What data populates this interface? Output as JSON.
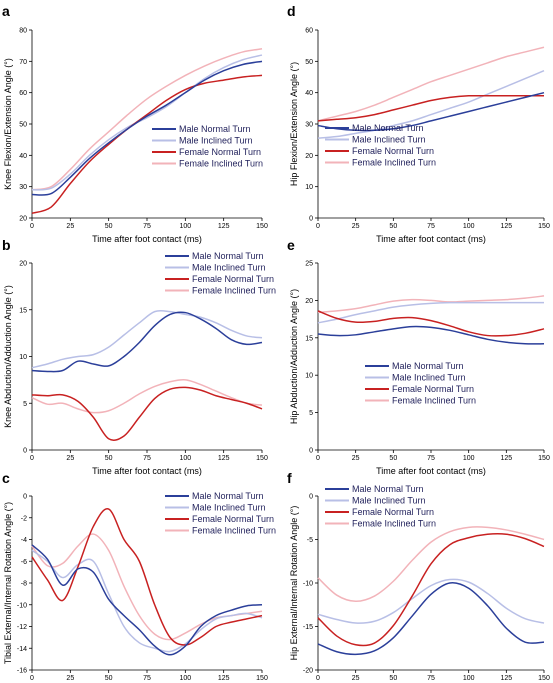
{
  "series_colors": {
    "Male Normal Turn": "#2b3f9a",
    "Male Inclined Turn": "#b8bfe6",
    "Female Normal Turn": "#c82121",
    "Female Inclined Turn": "#f2b3b9"
  },
  "chart_data": [
    {
      "id": "a",
      "type": "line",
      "panel_label": "a",
      "xlabel": "Time after foot contact (ms)",
      "ylabel": "Knee Flexion/Extension Angle (°)",
      "xlim": [
        0,
        150
      ],
      "ylim": [
        20,
        80
      ],
      "xticks": [
        0,
        25,
        50,
        75,
        100,
        125,
        150
      ],
      "yticks": [
        20,
        30,
        40,
        50,
        60,
        70,
        80
      ],
      "legend": "lower-right",
      "x": [
        0,
        12.5,
        25,
        37.5,
        50,
        62.5,
        75,
        87.5,
        100,
        112.5,
        125,
        137.5,
        150
      ],
      "series": [
        {
          "name": "Male Normal Turn",
          "values": [
            27.5,
            27.8,
            33,
            39,
            44,
            48.5,
            52.5,
            56,
            60,
            64,
            67,
            69,
            70
          ]
        },
        {
          "name": "Male Inclined Turn",
          "values": [
            29,
            29.5,
            34,
            40,
            45,
            49,
            52,
            55.5,
            60,
            64.5,
            68,
            70.5,
            72
          ]
        },
        {
          "name": "Female Normal Turn",
          "values": [
            21.5,
            23.5,
            31,
            38,
            43.5,
            48.5,
            53,
            57.5,
            61,
            63,
            64,
            65,
            65.5
          ]
        },
        {
          "name": "Female Inclined Turn",
          "values": [
            29,
            30,
            35.5,
            42,
            47.5,
            53,
            58,
            62,
            65.5,
            68.5,
            71,
            73,
            74
          ]
        }
      ]
    },
    {
      "id": "d",
      "type": "line",
      "panel_label": "d",
      "xlabel": "Time after foot contact (ms)",
      "ylabel": "Hip Flexion/Extension Angle (°)",
      "xlim": [
        0,
        150
      ],
      "ylim": [
        0,
        60
      ],
      "xticks": [
        0,
        25,
        50,
        75,
        100,
        125,
        150
      ],
      "yticks": [
        0,
        10,
        20,
        30,
        40,
        50,
        60
      ],
      "legend": "lower-left",
      "x": [
        0,
        12.5,
        25,
        37.5,
        50,
        62.5,
        75,
        87.5,
        100,
        112.5,
        125,
        137.5,
        150
      ],
      "series": [
        {
          "name": "Male Normal Turn",
          "values": [
            29.5,
            28.5,
            28,
            28,
            28.5,
            29.5,
            31,
            32.5,
            34,
            35.5,
            37,
            38.5,
            40
          ]
        },
        {
          "name": "Male Inclined Turn",
          "values": [
            25.5,
            26,
            27,
            28,
            29.5,
            31,
            33,
            35,
            37,
            39.5,
            42,
            44.5,
            47
          ]
        },
        {
          "name": "Female Normal Turn",
          "values": [
            31,
            31.5,
            32,
            33,
            34.5,
            36,
            37.5,
            38.5,
            39,
            39,
            39,
            39,
            39
          ]
        },
        {
          "name": "Female Inclined Turn",
          "values": [
            31,
            32.5,
            34,
            36,
            38.5,
            41,
            43.5,
            45.5,
            47.5,
            49.5,
            51.5,
            53,
            54.5
          ]
        }
      ]
    },
    {
      "id": "b",
      "type": "line",
      "panel_label": "b",
      "xlabel": "Time after foot contact (ms)",
      "ylabel": "Knee Abduction/Adduction Angle (°)",
      "xlim": [
        0,
        150
      ],
      "ylim": [
        0,
        20
      ],
      "xticks": [
        0,
        25,
        50,
        75,
        100,
        125,
        150
      ],
      "yticks": [
        0,
        5,
        10,
        15,
        20
      ],
      "legend": "top-right",
      "x": [
        0,
        10,
        20,
        30,
        40,
        50,
        60,
        70,
        80,
        90,
        100,
        110,
        120,
        130,
        140,
        150
      ],
      "series": [
        {
          "name": "Male Normal Turn",
          "values": [
            8.5,
            8.4,
            8.5,
            9.5,
            9.2,
            9.0,
            10,
            11.5,
            13.3,
            14.5,
            14.7,
            14.0,
            13,
            11.8,
            11.3,
            11.5
          ]
        },
        {
          "name": "Male Inclined Turn",
          "values": [
            8.8,
            9.2,
            9.7,
            10,
            10.2,
            11,
            12.3,
            13.6,
            14.8,
            14.8,
            14.5,
            14.2,
            13.6,
            12.8,
            12.2,
            12
          ]
        },
        {
          "name": "Female Normal Turn",
          "values": [
            5.9,
            5.8,
            5.9,
            5.2,
            3.5,
            1.2,
            1.5,
            3.5,
            5.5,
            6.5,
            6.7,
            6.4,
            5.8,
            5.4,
            5.0,
            4.4
          ]
        },
        {
          "name": "Female Inclined Turn",
          "values": [
            5.6,
            4.9,
            5.0,
            4.4,
            4.0,
            4.2,
            5.0,
            6.0,
            6.8,
            7.3,
            7.5,
            7.0,
            6.3,
            5.6,
            5.0,
            4.8
          ]
        }
      ]
    },
    {
      "id": "e",
      "type": "line",
      "panel_label": "e",
      "xlabel": "Time after foot contact (ms)",
      "ylabel": "Hip Abduction/Adduction Angle (°)",
      "xlim": [
        0,
        150
      ],
      "ylim": [
        0,
        25
      ],
      "xticks": [
        0,
        25,
        50,
        75,
        100,
        125,
        150
      ],
      "yticks": [
        0,
        5,
        10,
        15,
        20,
        25
      ],
      "legend": "lower-right",
      "x": [
        0,
        12.5,
        25,
        37.5,
        50,
        62.5,
        75,
        87.5,
        100,
        112.5,
        125,
        137.5,
        150
      ],
      "series": [
        {
          "name": "Male Normal Turn",
          "values": [
            15.5,
            15.3,
            15.4,
            15.8,
            16.2,
            16.5,
            16.4,
            16.0,
            15.4,
            14.8,
            14.4,
            14.2,
            14.2
          ]
        },
        {
          "name": "Male Inclined Turn",
          "values": [
            17.0,
            17.5,
            18.1,
            18.6,
            19.1,
            19.4,
            19.6,
            19.7,
            19.7,
            19.7,
            19.7,
            19.7,
            19.7
          ]
        },
        {
          "name": "Female Normal Turn",
          "values": [
            18.6,
            17.6,
            17.1,
            17.2,
            17.6,
            17.7,
            17.3,
            16.6,
            15.8,
            15.3,
            15.3,
            15.6,
            16.2
          ]
        },
        {
          "name": "Female Inclined Turn",
          "values": [
            18.4,
            18.6,
            18.9,
            19.4,
            19.9,
            20.1,
            20.0,
            19.8,
            19.9,
            20.0,
            20.1,
            20.3,
            20.6
          ]
        }
      ]
    },
    {
      "id": "c",
      "type": "line",
      "panel_label": "c",
      "xlabel": "Time after foot contact (ms)",
      "ylabel": "Tibial External/Internal Rotation Angle (°)",
      "xlim": [
        0,
        150
      ],
      "ylim": [
        -16,
        0
      ],
      "xticks": [
        0,
        25,
        50,
        75,
        100,
        125,
        150
      ],
      "yticks": [
        0,
        -2,
        -4,
        -6,
        -8,
        -10,
        -12,
        -14,
        -16
      ],
      "legend": "top-right",
      "x": [
        0,
        10,
        20,
        30,
        40,
        50,
        60,
        70,
        80,
        90,
        100,
        110,
        120,
        130,
        140,
        150
      ],
      "series": [
        {
          "name": "Male Normal Turn",
          "values": [
            -4.5,
            -5.8,
            -8.2,
            -6.7,
            -7.0,
            -9.5,
            -11.0,
            -12.3,
            -13.8,
            -14.6,
            -13.8,
            -12.0,
            -11.0,
            -10.5,
            -10.1,
            -10.0
          ]
        },
        {
          "name": "Male Inclined Turn",
          "values": [
            -5.0,
            -6.0,
            -7.5,
            -6.3,
            -6.0,
            -9.0,
            -12.0,
            -13.5,
            -14.0,
            -14.3,
            -13.6,
            -12.3,
            -11.3,
            -11.0,
            -10.8,
            -11.2
          ]
        },
        {
          "name": "Female Normal Turn",
          "values": [
            -5.6,
            -7.7,
            -9.6,
            -6.5,
            -2.8,
            -1.2,
            -4.0,
            -6.0,
            -10.0,
            -13.0,
            -13.7,
            -13.0,
            -12.0,
            -11.6,
            -11.3,
            -11.0
          ]
        },
        {
          "name": "Female Inclined Turn",
          "values": [
            -4.6,
            -6.4,
            -6.2,
            -4.6,
            -3.5,
            -5.0,
            -8.3,
            -11.0,
            -12.7,
            -13.2,
            -12.6,
            -11.8,
            -11.2,
            -11.0,
            -10.8,
            -10.6
          ]
        }
      ]
    },
    {
      "id": "f",
      "type": "line",
      "panel_label": "f",
      "xlabel": "Time after foot contact (ms)",
      "ylabel": "Hip External/Internal Rotation Angle (°)",
      "xlim": [
        0,
        150
      ],
      "ylim": [
        -20,
        0
      ],
      "xticks": [
        0,
        25,
        50,
        75,
        100,
        125,
        150
      ],
      "yticks": [
        0,
        -5,
        -10,
        -15,
        -20
      ],
      "legend": "top-left",
      "x": [
        0,
        12.5,
        25,
        37.5,
        50,
        62.5,
        75,
        87.5,
        100,
        112.5,
        125,
        137.5,
        150
      ],
      "series": [
        {
          "name": "Male Normal Turn",
          "values": [
            -17.0,
            -17.9,
            -18.2,
            -17.8,
            -16.3,
            -13.8,
            -11.3,
            -10.0,
            -10.6,
            -12.6,
            -15.2,
            -16.8,
            -16.8
          ]
        },
        {
          "name": "Male Inclined Turn",
          "values": [
            -13.6,
            -14.2,
            -14.6,
            -14.4,
            -13.4,
            -11.8,
            -10.3,
            -9.6,
            -9.9,
            -11.2,
            -12.9,
            -14.1,
            -14.6
          ]
        },
        {
          "name": "Female Normal Turn",
          "values": [
            -14.0,
            -16.1,
            -17.1,
            -16.9,
            -14.9,
            -11.5,
            -7.8,
            -5.6,
            -4.8,
            -4.4,
            -4.4,
            -4.9,
            -5.8
          ]
        },
        {
          "name": "Female Inclined Turn",
          "values": [
            -9.4,
            -11.4,
            -12.1,
            -11.5,
            -9.8,
            -7.4,
            -5.3,
            -4.1,
            -3.6,
            -3.6,
            -3.9,
            -4.4,
            -5.0
          ]
        }
      ]
    }
  ]
}
